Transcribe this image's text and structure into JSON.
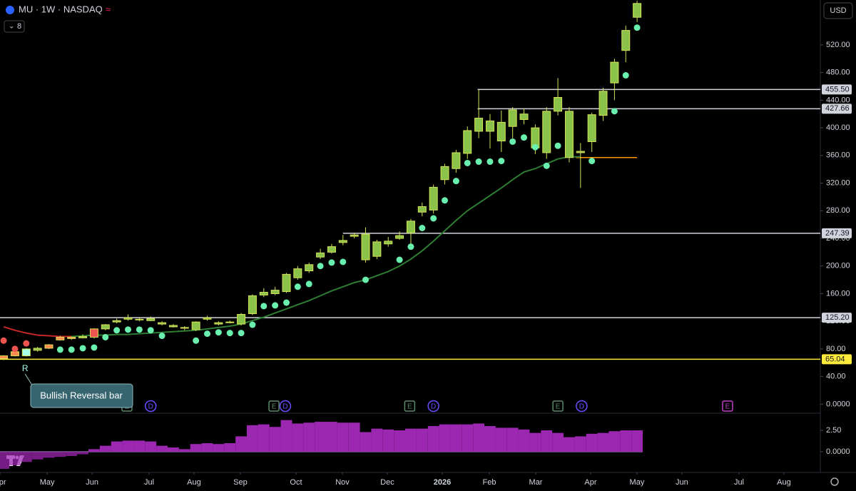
{
  "header": {
    "title": "MU · 1W · NASDAQ",
    "count": "8",
    "currency": "USD"
  },
  "chart_data": {
    "type": "candlestick",
    "xlim": [
      -0.32,
      72.2
    ],
    "ylim": [
      -12,
      585
    ],
    "y2lim": [
      -2.42,
      4.42
    ],
    "xticks": [
      {
        "value": -0.32,
        "label": "Apr"
      },
      {
        "value": 3.85,
        "label": "May"
      },
      {
        "value": 7.82,
        "label": "Jun"
      },
      {
        "value": 12.86,
        "label": "Jul"
      },
      {
        "value": 16.83,
        "label": "Aug"
      },
      {
        "value": 20.93,
        "label": "Sep"
      },
      {
        "value": 25.85,
        "label": "Oct"
      },
      {
        "value": 29.95,
        "label": "Nov"
      },
      {
        "value": 33.92,
        "label": "Dec"
      },
      {
        "value": 38.78,
        "label": "2026"
      },
      {
        "value": 42.94,
        "label": "Feb"
      },
      {
        "value": 47.04,
        "label": "Mar"
      },
      {
        "value": 51.89,
        "label": "Apr"
      },
      {
        "value": 55.99,
        "label": "May"
      },
      {
        "value": 59.96,
        "label": "Jun"
      },
      {
        "value": 65.01,
        "label": "Jul"
      },
      {
        "value": 68.98,
        "label": "Aug"
      }
    ],
    "yticks": [
      {
        "value": 0,
        "label": "0.0000"
      },
      {
        "value": 40,
        "label": "40.00"
      },
      {
        "value": 80,
        "label": "80.00"
      },
      {
        "value": 120,
        "label": "120.00"
      },
      {
        "value": 160,
        "label": "160.00"
      },
      {
        "value": 200,
        "label": "200.00"
      },
      {
        "value": 240,
        "label": "240.00"
      },
      {
        "value": 280,
        "label": "280.00"
      },
      {
        "value": 320,
        "label": "320.00"
      },
      {
        "value": 360,
        "label": "360.00"
      },
      {
        "value": 400,
        "label": "400.00"
      },
      {
        "value": 440,
        "label": "440.00"
      },
      {
        "value": 480,
        "label": "480.00"
      },
      {
        "value": 520,
        "label": "520.00"
      }
    ],
    "y2ticks": [
      {
        "value": 2.5,
        "label": "2.50"
      },
      {
        "value": 0,
        "label": "0.0000"
      }
    ],
    "open": [
      66,
      70,
      70,
      78,
      81,
      93,
      95,
      96,
      109,
      109,
      119,
      123,
      122,
      124,
      118,
      114,
      110,
      108,
      123,
      118,
      118,
      116,
      131,
      158,
      160,
      163,
      183,
      193,
      213,
      220,
      234,
      243,
      209,
      214,
      232,
      240,
      248,
      278,
      281,
      325,
      341,
      363,
      395,
      395,
      381,
      402,
      412,
      371,
      364,
      424,
      357,
      364,
      380,
      418,
      465,
      512,
      560
    ],
    "high": [
      71,
      77,
      81,
      83,
      87,
      99,
      98,
      101,
      110,
      116,
      124,
      130,
      126,
      127,
      120,
      116,
      113,
      120,
      128,
      120,
      121,
      132,
      159,
      168,
      170,
      190,
      200,
      205,
      225,
      232,
      245,
      248,
      256,
      238,
      242,
      250,
      268,
      292,
      318,
      348,
      368,
      402,
      455,
      420,
      425,
      430,
      428,
      405,
      430,
      472,
      430,
      378,
      422,
      458,
      500,
      548,
      584
    ],
    "low": [
      64,
      69,
      69,
      76,
      80,
      92,
      93,
      95,
      95,
      107,
      117,
      121,
      120,
      120,
      114,
      111,
      107,
      106,
      121,
      114,
      117,
      114,
      129,
      155,
      158,
      161,
      180,
      190,
      210,
      218,
      230,
      240,
      205,
      210,
      228,
      238,
      225,
      272,
      276,
      318,
      335,
      355,
      385,
      370,
      365,
      385,
      405,
      362,
      355,
      418,
      350,
      313,
      365,
      410,
      440,
      495,
      553
    ],
    "close": [
      70,
      76,
      80,
      81,
      86,
      97,
      97,
      98,
      97,
      115,
      121,
      125,
      123,
      121,
      116,
      112,
      111,
      119,
      125,
      116,
      119,
      130,
      157,
      162,
      165,
      188,
      196,
      202,
      219,
      228,
      237,
      245,
      246,
      235,
      236,
      244,
      265,
      286,
      314,
      344,
      364,
      396,
      414,
      410,
      408,
      426,
      420,
      400,
      424,
      444,
      424,
      366,
      419,
      453,
      495,
      541,
      580
    ],
    "colors": [
      "#ff8a50",
      "#ff8a50",
      "#a7ffeb",
      "#8bc34a",
      "#ff8a50",
      "#ff8a50",
      "#ff8a50",
      "#8bc34a",
      "#ef5350",
      "#8bc34a",
      "#8bc34a",
      "#8bc34a",
      "#8bc34a",
      "#8bc34a",
      "#8bc34a",
      "#8bc34a",
      "#8bc34a",
      "#8bc34a",
      "#8bc34a",
      "#8bc34a",
      "#8bc34a",
      "#8bc34a",
      "#8bc34a",
      "#8bc34a",
      "#8bc34a",
      "#8bc34a",
      "#8bc34a",
      "#8bc34a",
      "#8bc34a",
      "#8bc34a",
      "#8bc34a",
      "#8bc34a",
      "#8bc34a",
      "#8bc34a",
      "#8bc34a",
      "#8bc34a",
      "#8bc34a",
      "#8bc34a",
      "#8bc34a",
      "#8bc34a",
      "#8bc34a",
      "#8bc34a",
      "#8bc34a",
      "#8bc34a",
      "#8bc34a",
      "#8bc34a",
      "#8bc34a",
      "#8bc34a",
      "#8bc34a",
      "#8bc34a",
      "#8bc34a",
      "#8bc34a",
      "#8bc34a",
      "#8bc34a",
      "#8bc34a",
      "#8bc34a",
      "#8bc34a"
    ],
    "wick_color": "#d4e157",
    "lines": [
      {
        "color": "#c62828",
        "values": [
          112,
          107,
          103,
          100,
          99,
          98,
          98,
          null,
          null,
          null,
          null,
          null,
          null,
          null,
          null,
          null,
          null,
          null,
          null,
          null,
          null,
          null,
          null,
          null,
          null,
          null,
          null,
          null,
          null,
          null,
          null,
          null,
          null,
          null,
          null,
          null,
          null,
          null,
          null,
          null,
          null,
          null,
          null,
          null,
          null,
          null,
          null,
          null,
          null,
          null,
          null,
          null,
          null,
          null,
          null,
          null,
          null
        ]
      },
      {
        "color": "#2e7d32",
        "values": [
          null,
          null,
          null,
          null,
          null,
          null,
          98,
          99,
          100,
          100,
          101,
          101,
          102,
          103,
          104,
          105,
          106,
          107,
          109,
          111,
          113,
          116,
          121,
          126,
          132,
          138,
          144,
          150,
          157,
          164,
          170,
          176,
          180,
          186,
          192,
          200,
          210,
          222,
          236,
          251,
          266,
          280,
          291,
          302,
          313,
          325,
          336,
          341,
          348,
          355,
          358,
          358,
          null,
          null,
          null,
          null,
          null
        ]
      }
    ],
    "dots": [
      {
        "color": "#ef5350",
        "values": [
          92,
          80,
          88,
          null,
          null,
          null,
          null,
          null,
          null,
          null,
          null,
          null,
          null,
          null,
          null,
          null,
          null,
          null,
          null,
          null,
          null,
          null,
          null,
          null,
          null,
          null,
          null,
          null,
          null,
          null,
          null,
          null,
          null,
          null,
          null,
          null,
          null,
          null,
          null,
          null,
          null,
          null,
          null,
          null,
          null,
          null,
          null,
          null,
          null,
          null,
          null,
          null,
          null,
          null,
          null,
          null,
          null
        ]
      },
      {
        "color": "#69f0ae",
        "values": [
          null,
          null,
          null,
          null,
          null,
          79,
          79,
          81,
          82,
          97,
          107,
          108,
          108,
          107,
          99,
          null,
          null,
          92,
          102,
          104,
          103,
          103,
          115,
          142,
          143,
          147,
          170,
          174,
          200,
          205,
          206,
          null,
          180,
          null,
          null,
          209,
          228,
          255,
          269,
          295,
          323,
          349,
          351,
          351,
          352,
          380,
          386,
          372,
          345,
          374,
          null,
          null,
          352,
          null,
          424,
          476,
          545
        ]
      }
    ],
    "levels": [
      {
        "value": 455.5,
        "label": "455.50",
        "from": 41.9,
        "color": "#d1d4dc"
      },
      {
        "value": 427.66,
        "label": "427.66",
        "from": 41.9,
        "color": "#d1d4dc"
      },
      {
        "value": 247.39,
        "label": "247.39",
        "from": 30,
        "color": "#d1d4dc"
      },
      {
        "value": 125.2,
        "label": "125.20",
        "from": -0.32,
        "color": "#d1d4dc"
      },
      {
        "value": 65.04,
        "label": "65.04",
        "from": -0.32,
        "color": "#ffeb3b"
      },
      {
        "value": 357,
        "from": 50.6,
        "to": 56,
        "color": "#ff9800"
      }
    ],
    "histogram": {
      "color": "#9c27b0",
      "values": [
        -2.0,
        -1.6,
        -1.2,
        -0.9,
        -0.7,
        -0.6,
        -0.5,
        -0.3,
        0.3,
        0.7,
        1.2,
        1.3,
        1.3,
        1.2,
        0.7,
        0.5,
        0.3,
        0.9,
        1.0,
        0.9,
        1.0,
        1.8,
        3.1,
        3.2,
        2.9,
        3.7,
        3.3,
        3.4,
        3.5,
        3.5,
        3.4,
        3.4,
        2.3,
        2.7,
        2.6,
        2.5,
        2.7,
        2.7,
        3.0,
        3.2,
        3.2,
        3.2,
        3.3,
        3.0,
        2.8,
        2.8,
        2.6,
        2.2,
        2.5,
        2.2,
        1.7,
        1.8,
        2.1,
        2.2,
        2.4,
        2.5,
        2.5
      ]
    },
    "events": [
      {
        "label": "E",
        "x": 10.9,
        "shape": "square",
        "color": "#5d8a6a"
      },
      {
        "label": "D",
        "x": 13,
        "shape": "circle",
        "color": "#6a4cff"
      },
      {
        "label": "E",
        "x": 23.9,
        "shape": "square",
        "color": "#5d8a6a"
      },
      {
        "label": "D",
        "x": 24.9,
        "shape": "circle",
        "color": "#6a4cff"
      },
      {
        "label": "E",
        "x": 35.9,
        "shape": "square",
        "color": "#5d8a6a"
      },
      {
        "label": "D",
        "x": 38,
        "shape": "circle",
        "color": "#6a4cff"
      },
      {
        "label": "E",
        "x": 49,
        "shape": "square",
        "color": "#5d8a6a"
      },
      {
        "label": "D",
        "x": 51.1,
        "shape": "circle",
        "color": "#6a4cff"
      },
      {
        "label": "E",
        "x": 64,
        "shape": "square",
        "color": "#c040c8"
      }
    ],
    "marker": {
      "label": "R",
      "x": 1.9
    },
    "annotation": "Bullish Reversal bar"
  }
}
